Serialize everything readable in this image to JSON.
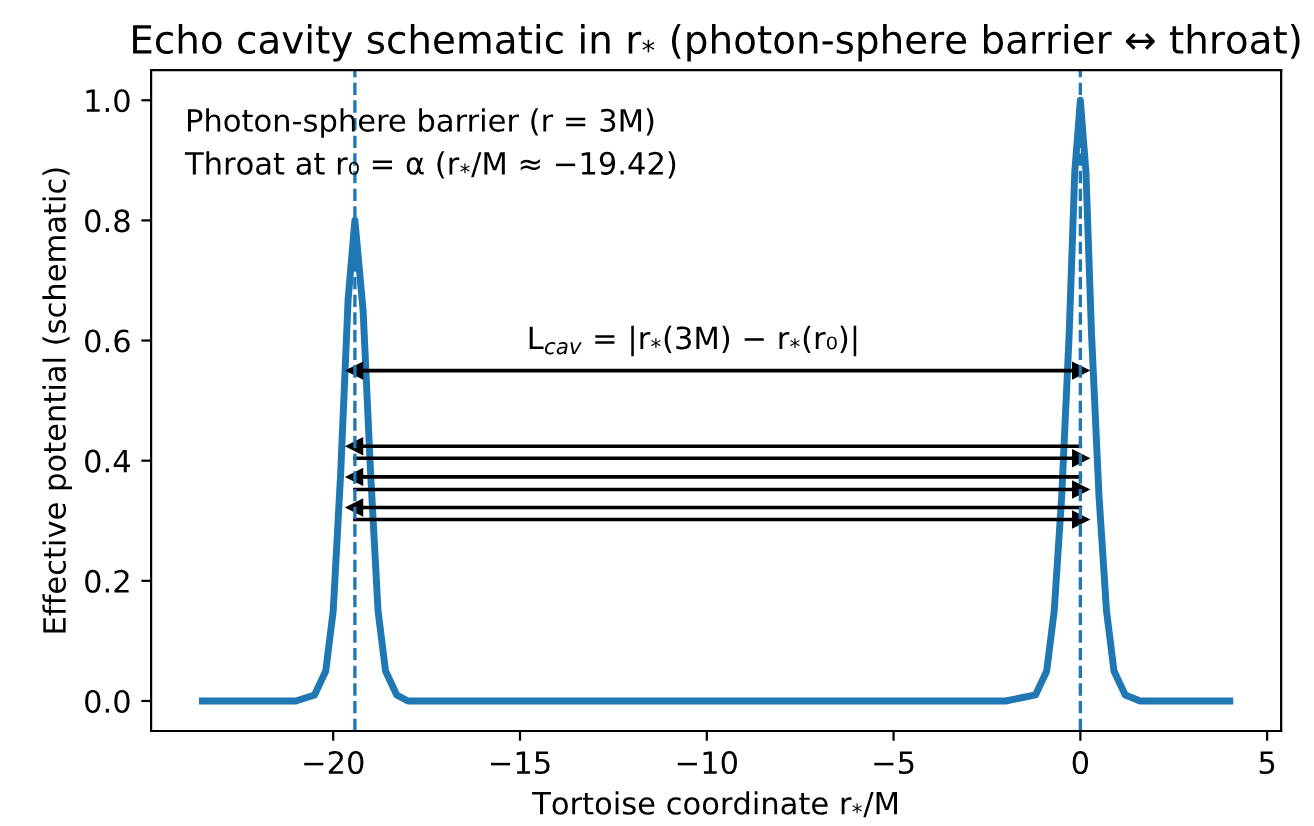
{
  "chart_data": {
    "type": "line",
    "title": "Echo cavity schematic in r$_{*}$ (photon-sphere barrier ↔ throat)",
    "xlabel": "Tortoise coordinate r$_{*}$/M",
    "ylabel": "Effective potential (schematic)",
    "series": [
      {
        "color": "#1f77b4",
        "x": [
          -23.5,
          -21,
          -20.5,
          -20.2,
          -20,
          -19.8,
          -19.6,
          -19.42,
          -19.2,
          -19,
          -18.8,
          -18.6,
          -18.3,
          -18,
          -2,
          -1.2,
          -0.9,
          -0.7,
          -0.5,
          -0.3,
          -0.15,
          0,
          0.15,
          0.3,
          0.5,
          0.7,
          0.9,
          1.2,
          1.6,
          4
        ],
        "values": [
          0,
          0,
          0.01,
          0.05,
          0.15,
          0.38,
          0.67,
          0.8,
          0.65,
          0.38,
          0.15,
          0.05,
          0.01,
          0,
          0,
          0.01,
          0.05,
          0.15,
          0.34,
          0.61,
          0.88,
          1.0,
          0.88,
          0.61,
          0.34,
          0.15,
          0.05,
          0.01,
          0,
          0
        ]
      },
      {
        "color": "#000000",
        "x": [
          -19.42,
          0
        ],
        "values": [
          0.55,
          0.55
        ],
        "marker": "triangle"
      },
      {
        "color": "#000000",
        "x": [
          0,
          -19.42
        ],
        "values": [
          0.424,
          0.424
        ]
      },
      {
        "color": "#000000",
        "x": [
          -19.42,
          0
        ],
        "values": [
          0.404,
          0.404
        ]
      },
      {
        "color": "#000000",
        "x": [
          0,
          -19.42
        ],
        "values": [
          0.373,
          0.373
        ]
      },
      {
        "color": "#000000",
        "x": [
          -19.42,
          0
        ],
        "values": [
          0.352,
          0.352
        ]
      },
      {
        "color": "#000000",
        "x": [
          0,
          -19.42
        ],
        "values": [
          0.322,
          0.322
        ]
      },
      {
        "color": "#000000",
        "x": [
          -19.42,
          0
        ],
        "values": [
          0.302,
          0.302
        ]
      }
    ],
    "ref_lines": [
      {
        "axis": "x",
        "value": -19.42,
        "color": "#1f77b4",
        "line_style": "dashed"
      },
      {
        "axis": "x",
        "value": 0,
        "color": "#1f77b4",
        "line_style": "dashed"
      }
    ],
    "annotations": [
      "Photon-sphere barrier (r = 3M)",
      "Throat at r₀ = α (r$_{*}$/M ≈ −19.42)",
      "L$_{cav}$ = |r$_{*}$(3M) − r$_{*}$(r₀)|"
    ],
    "xlim": [
      -24.875,
      5.375
    ],
    "ylim": [
      -0.05,
      1.05
    ],
    "xticks": [
      {
        "value": -20,
        "label": "−20"
      },
      {
        "value": -15,
        "label": "−15"
      },
      {
        "value": -10,
        "label": "−10"
      },
      {
        "value": -5,
        "label": "−5"
      },
      0,
      5
    ],
    "yticks": [
      {
        "value": 0,
        "label": "0.0"
      },
      {
        "value": 0.2,
        "label": "0.2"
      },
      {
        "value": 0.4,
        "label": "0.4"
      },
      {
        "value": 0.6,
        "label": "0.6"
      },
      {
        "value": 0.8,
        "label": "0.8"
      },
      {
        "value": 1.0,
        "label": "1.0"
      }
    ],
    "grid": false,
    "legend": false
  }
}
